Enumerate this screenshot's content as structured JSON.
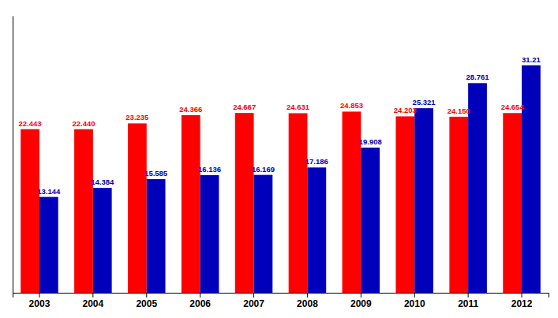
{
  "chart_data": {
    "type": "bar",
    "categories": [
      "2003",
      "2004",
      "2005",
      "2006",
      "2007",
      "2008",
      "2009",
      "2010",
      "2011",
      "2012"
    ],
    "series": [
      {
        "color": "#ff0000",
        "values": [
          22.443,
          22.44,
          23.235,
          24.366,
          24.667,
          24.631,
          24.853,
          24.203,
          24.15,
          24.654
        ],
        "value_labels": [
          "22.443",
          "22.440",
          "23.235",
          "24.366",
          "24.667",
          "24.631",
          "24.853",
          "24.203",
          "24.150",
          "24.654"
        ]
      },
      {
        "color": "#0000bb",
        "values": [
          13.144,
          14.384,
          15.585,
          16.136,
          16.169,
          17.186,
          19.908,
          25.321,
          28.761,
          31.21
        ],
        "value_labels": [
          "13.144",
          "14.384",
          "15.585",
          "16.136",
          "16.169",
          "17.186",
          "19.908",
          "25.321",
          "28.761",
          "31.21"
        ]
      }
    ],
    "ylim": [
      0,
      38
    ],
    "data_labels": true,
    "tick_labels": "x"
  }
}
